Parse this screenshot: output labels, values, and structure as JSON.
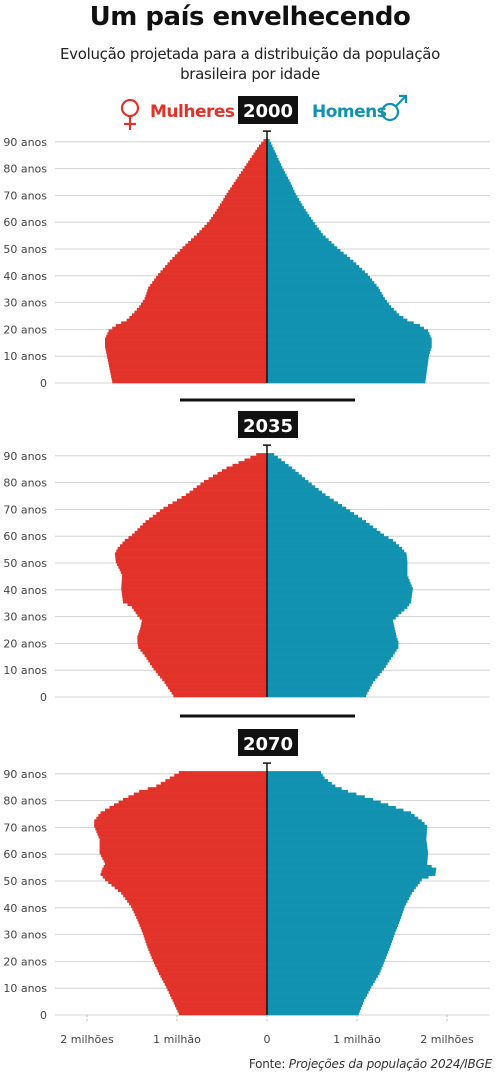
{
  "header": {
    "title": "Um país envelhecendo",
    "subtitle_line1": "Evolução projetada para a distribuição da população",
    "subtitle_line2": "brasileira por idade"
  },
  "legend": {
    "women_label": "Mulheres",
    "men_label": "Homens",
    "women_color": "#e2332a",
    "men_color": "#1192b0",
    "women_icon": "female-symbol-icon",
    "men_icon": "male-symbol-icon"
  },
  "footer": {
    "source_prefix": "Fonte: ",
    "source_name": "Projeções da população 2024/IBGE"
  },
  "chart_data": {
    "type": "population-pyramid",
    "x_unit": "pessoas",
    "x_range": [
      -2300000,
      2300000
    ],
    "x_ticks": [
      {
        "value": -2000000,
        "label": "2 milhões"
      },
      {
        "value": -1000000,
        "label": "1 milhão"
      },
      {
        "value": 0,
        "label": "0"
      },
      {
        "value": 1000000,
        "label": "1 milhão"
      },
      {
        "value": 2000000,
        "label": "2 milhões"
      }
    ],
    "y_tick_labels": [
      "0",
      "10 anos",
      "20 anos",
      "30 anos",
      "40 anos",
      "50 anos",
      "60 anos",
      "70 anos",
      "80 anos",
      "90 anos"
    ],
    "age_range": [
      0,
      90
    ],
    "grid": true,
    "panels": [
      {
        "year": "2000",
        "age_knots": [
          0,
          5,
          10,
          13,
          16,
          19,
          21,
          23,
          25,
          28,
          31,
          35,
          40,
          45,
          50,
          55,
          60,
          65,
          70,
          75,
          80,
          85,
          88,
          90
        ],
        "women_knots": [
          1720000,
          1750000,
          1780000,
          1800000,
          1800000,
          1760000,
          1680000,
          1560000,
          1500000,
          1420000,
          1360000,
          1320000,
          1210000,
          1080000,
          940000,
          780000,
          640000,
          540000,
          450000,
          350000,
          250000,
          150000,
          90000,
          40000
        ],
        "men_knots": [
          1760000,
          1780000,
          1800000,
          1830000,
          1830000,
          1790000,
          1700000,
          1560000,
          1470000,
          1380000,
          1310000,
          1240000,
          1120000,
          960000,
          780000,
          620000,
          510000,
          410000,
          320000,
          250000,
          170000,
          100000,
          60000,
          30000
        ]
      },
      {
        "year": "2035",
        "age_knots": [
          0,
          5,
          10,
          15,
          18,
          20,
          22,
          25,
          28,
          30,
          33,
          35,
          40,
          45,
          50,
          53,
          55,
          58,
          60,
          65,
          70,
          75,
          80,
          85,
          88,
          90
        ],
        "women_knots": [
          1040000,
          1140000,
          1260000,
          1360000,
          1430000,
          1440000,
          1440000,
          1410000,
          1390000,
          1440000,
          1500000,
          1600000,
          1620000,
          1610000,
          1680000,
          1690000,
          1660000,
          1580000,
          1500000,
          1350000,
          1150000,
          900000,
          700000,
          450000,
          250000,
          120000
        ],
        "men_knots": [
          1100000,
          1180000,
          1300000,
          1400000,
          1460000,
          1460000,
          1440000,
          1420000,
          1400000,
          1460000,
          1560000,
          1600000,
          1620000,
          1560000,
          1560000,
          1550000,
          1500000,
          1400000,
          1300000,
          1100000,
          880000,
          650000,
          460000,
          280000,
          160000,
          80000
        ]
      },
      {
        "year": "2070",
        "age_knots": [
          0,
          5,
          10,
          15,
          20,
          25,
          30,
          35,
          40,
          45,
          50,
          52,
          54,
          56,
          60,
          65,
          70,
          72,
          75,
          80,
          83,
          85,
          88,
          90
        ],
        "women_knots": [
          980000,
          1050000,
          1120000,
          1200000,
          1270000,
          1330000,
          1380000,
          1440000,
          1510000,
          1620000,
          1800000,
          1850000,
          1830000,
          1800000,
          1860000,
          1860000,
          1920000,
          1920000,
          1850000,
          1600000,
          1420000,
          1230000,
          1080000,
          980000
        ],
        "men_knots": [
          1020000,
          1080000,
          1160000,
          1250000,
          1310000,
          1370000,
          1420000,
          1480000,
          1530000,
          1610000,
          1720000,
          1870000,
          1880000,
          1780000,
          1790000,
          1770000,
          1780000,
          1720000,
          1600000,
          1180000,
          900000,
          760000,
          640000,
          600000
        ]
      }
    ]
  }
}
